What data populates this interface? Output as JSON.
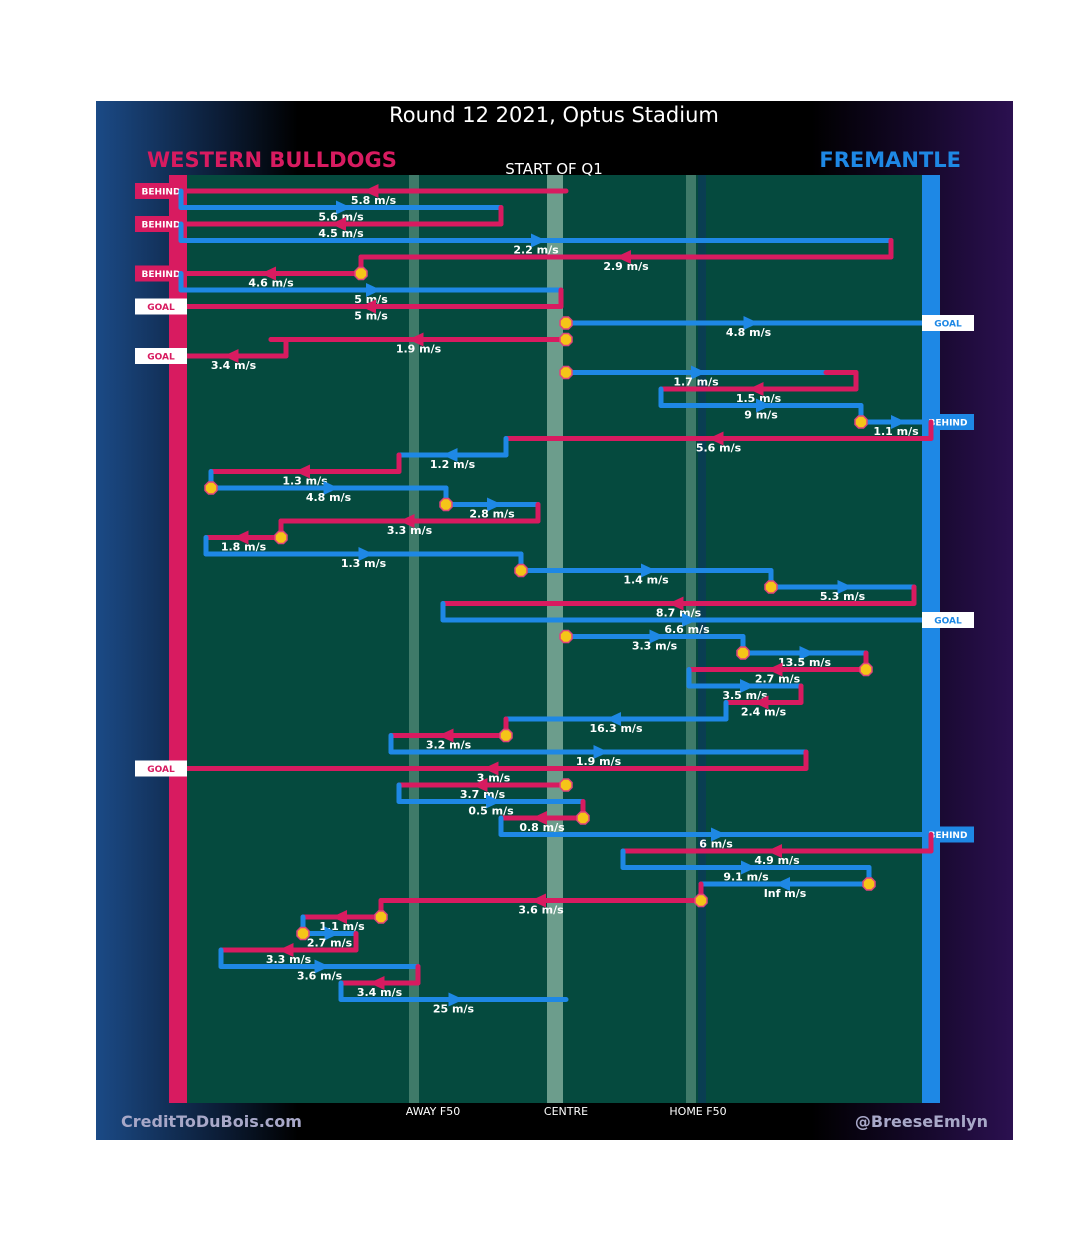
{
  "chart_data": {
    "type": "line",
    "title": "Round 12 2021, Optus Stadium",
    "subtitle": "START OF Q1",
    "home_team": {
      "name": "WESTERN BULLDOGS",
      "color": "#d81b60"
    },
    "away_team": {
      "name": "FREMANTLE",
      "color": "#1e88e5"
    },
    "x_axis_labels": [
      {
        "label": "AWAY F50",
        "x": 252
      },
      {
        "label": "CENTRE",
        "x": 385
      },
      {
        "label": "HOME F50",
        "x": 517
      }
    ],
    "xlim": [
      0,
      750
    ],
    "credit_left": "CreditToDuBois.com",
    "credit_right": "@BreeseEmlyn",
    "chains": [
      {
        "team": "WB",
        "start": 385,
        "end": 0,
        "speed": "5.8 m/s",
        "start_marker": false,
        "result": "BEHIND"
      },
      {
        "team": "FRE",
        "start": 0,
        "end": 320,
        "speed": "5.6 m/s",
        "start_marker": false
      },
      {
        "team": "WB",
        "start": 320,
        "end": 0,
        "speed": "4.5 m/s",
        "start_marker": false,
        "result": "BEHIND"
      },
      {
        "team": "FRE",
        "start": 0,
        "end": 710,
        "speed": "2.2 m/s",
        "start_marker": false
      },
      {
        "team": "WB",
        "start": 710,
        "end": 180,
        "speed": "2.9 m/s",
        "start_marker": false
      },
      {
        "team": "WB",
        "start": 180,
        "end": 0,
        "speed": "4.6 m/s",
        "start_marker": true,
        "result": "BEHIND"
      },
      {
        "team": "FRE",
        "start": 0,
        "end": 380,
        "speed": "5 m/s",
        "start_marker": false
      },
      {
        "team": "WB",
        "start": 380,
        "end": 0,
        "speed": "5 m/s",
        "start_marker": false,
        "result": "GOAL"
      },
      {
        "team": "FRE",
        "start": 385,
        "end": 750,
        "speed": "4.8 m/s",
        "start_marker": true,
        "result": "GOAL"
      },
      {
        "team": "WB",
        "start": 385,
        "end": 90,
        "speed": "1.9 m/s",
        "start_marker": true
      },
      {
        "team": "WB",
        "start": 105,
        "end": 0,
        "speed": "3.4 m/s",
        "start_marker": false,
        "result": "GOAL"
      },
      {
        "team": "FRE",
        "start": 385,
        "end": 645,
        "speed": "1.7 m/s",
        "start_marker": true
      },
      {
        "team": "WB",
        "start": 675,
        "end": 480,
        "speed": "1.5 m/s",
        "start_marker": false
      },
      {
        "team": "FRE",
        "start": 480,
        "end": 680,
        "speed": "9 m/s",
        "start_marker": false
      },
      {
        "team": "FRE",
        "start": 680,
        "end": 750,
        "speed": "1.1 m/s",
        "start_marker": true,
        "result": "BEHIND"
      },
      {
        "team": "WB",
        "start": 750,
        "end": 325,
        "speed": "5.6 m/s",
        "start_marker": false
      },
      {
        "team": "FRE",
        "start": 325,
        "end": 218,
        "speed": "1.2 m/s",
        "start_marker": false
      },
      {
        "team": "WB",
        "start": 218,
        "end": 30,
        "speed": "1.3 m/s",
        "start_marker": false
      },
      {
        "team": "FRE",
        "start": 30,
        "end": 265,
        "speed": "4.8 m/s",
        "start_marker": true
      },
      {
        "team": "FRE",
        "start": 265,
        "end": 357,
        "speed": "2.8 m/s",
        "start_marker": true
      },
      {
        "team": "WB",
        "start": 357,
        "end": 100,
        "speed": "3.3 m/s",
        "start_marker": false
      },
      {
        "team": "WB",
        "start": 100,
        "end": 25,
        "speed": "1.8 m/s",
        "start_marker": true
      },
      {
        "team": "FRE",
        "start": 25,
        "end": 340,
        "speed": "1.3 m/s",
        "start_marker": false
      },
      {
        "team": "FRE",
        "start": 340,
        "end": 590,
        "speed": "1.4 m/s",
        "start_marker": true
      },
      {
        "team": "FRE",
        "start": 590,
        "end": 733,
        "speed": "5.3 m/s",
        "start_marker": true
      },
      {
        "team": "WB",
        "start": 733,
        "end": 262,
        "speed": "8.7 m/s",
        "start_marker": false
      },
      {
        "team": "FRE",
        "start": 262,
        "end": 750,
        "speed": "6.6 m/s",
        "start_marker": false,
        "result": "GOAL"
      },
      {
        "team": "FRE",
        "start": 385,
        "end": 562,
        "speed": "3.3 m/s",
        "start_marker": true
      },
      {
        "team": "FRE",
        "start": 562,
        "end": 685,
        "speed": "13.5 m/s",
        "start_marker": true
      },
      {
        "team": "WB",
        "start": 685,
        "end": 508,
        "speed": "2.7 m/s",
        "start_marker": true
      },
      {
        "team": "FRE",
        "start": 508,
        "end": 620,
        "speed": "3.5 m/s",
        "start_marker": false
      },
      {
        "team": "WB",
        "start": 620,
        "end": 545,
        "speed": "2.4 m/s",
        "start_marker": false
      },
      {
        "team": "FRE",
        "start": 545,
        "end": 325,
        "speed": "16.3 m/s",
        "start_marker": false
      },
      {
        "team": "WB",
        "start": 325,
        "end": 210,
        "speed": "3.2 m/s",
        "start_marker": true
      },
      {
        "team": "FRE",
        "start": 210,
        "end": 625,
        "speed": "1.9 m/s",
        "start_marker": false
      },
      {
        "team": "WB",
        "start": 625,
        "end": 0,
        "speed": "3 m/s",
        "start_marker": false,
        "result": "GOAL"
      },
      {
        "team": "WB",
        "start": 385,
        "end": 218,
        "speed": "3.7 m/s",
        "start_marker": true
      },
      {
        "team": "FRE",
        "start": 218,
        "end": 402,
        "speed": "0.5 m/s",
        "start_marker": false
      },
      {
        "team": "WB",
        "start": 402,
        "end": 320,
        "speed": "0.8 m/s",
        "start_marker": true
      },
      {
        "team": "FRE",
        "start": 320,
        "end": 750,
        "speed": "6 m/s",
        "start_marker": false,
        "result": "BEHIND"
      },
      {
        "team": "WB",
        "start": 750,
        "end": 442,
        "speed": "4.9 m/s",
        "start_marker": false
      },
      {
        "team": "FRE",
        "start": 442,
        "end": 688,
        "speed": "9.1 m/s",
        "start_marker": false
      },
      {
        "team": "FRE",
        "start": 688,
        "end": 520,
        "speed": "Inf m/s",
        "start_marker": true
      },
      {
        "team": "WB",
        "start": 520,
        "end": 200,
        "speed": "3.6 m/s",
        "start_marker": true
      },
      {
        "team": "WB",
        "start": 200,
        "end": 122,
        "speed": "1.1 m/s",
        "start_marker": true
      },
      {
        "team": "FRE",
        "start": 122,
        "end": 175,
        "speed": "2.7 m/s",
        "start_marker": true
      },
      {
        "team": "WB",
        "start": 175,
        "end": 40,
        "speed": "3.3 m/s",
        "start_marker": false
      },
      {
        "team": "FRE",
        "start": 40,
        "end": 237,
        "speed": "3.6 m/s",
        "start_marker": false
      },
      {
        "team": "WB",
        "start": 237,
        "end": 160,
        "speed": "3.4 m/s",
        "start_marker": false
      },
      {
        "team": "FRE",
        "start": 160,
        "end": 385,
        "speed": "25 m/s",
        "start_marker": false
      }
    ]
  }
}
